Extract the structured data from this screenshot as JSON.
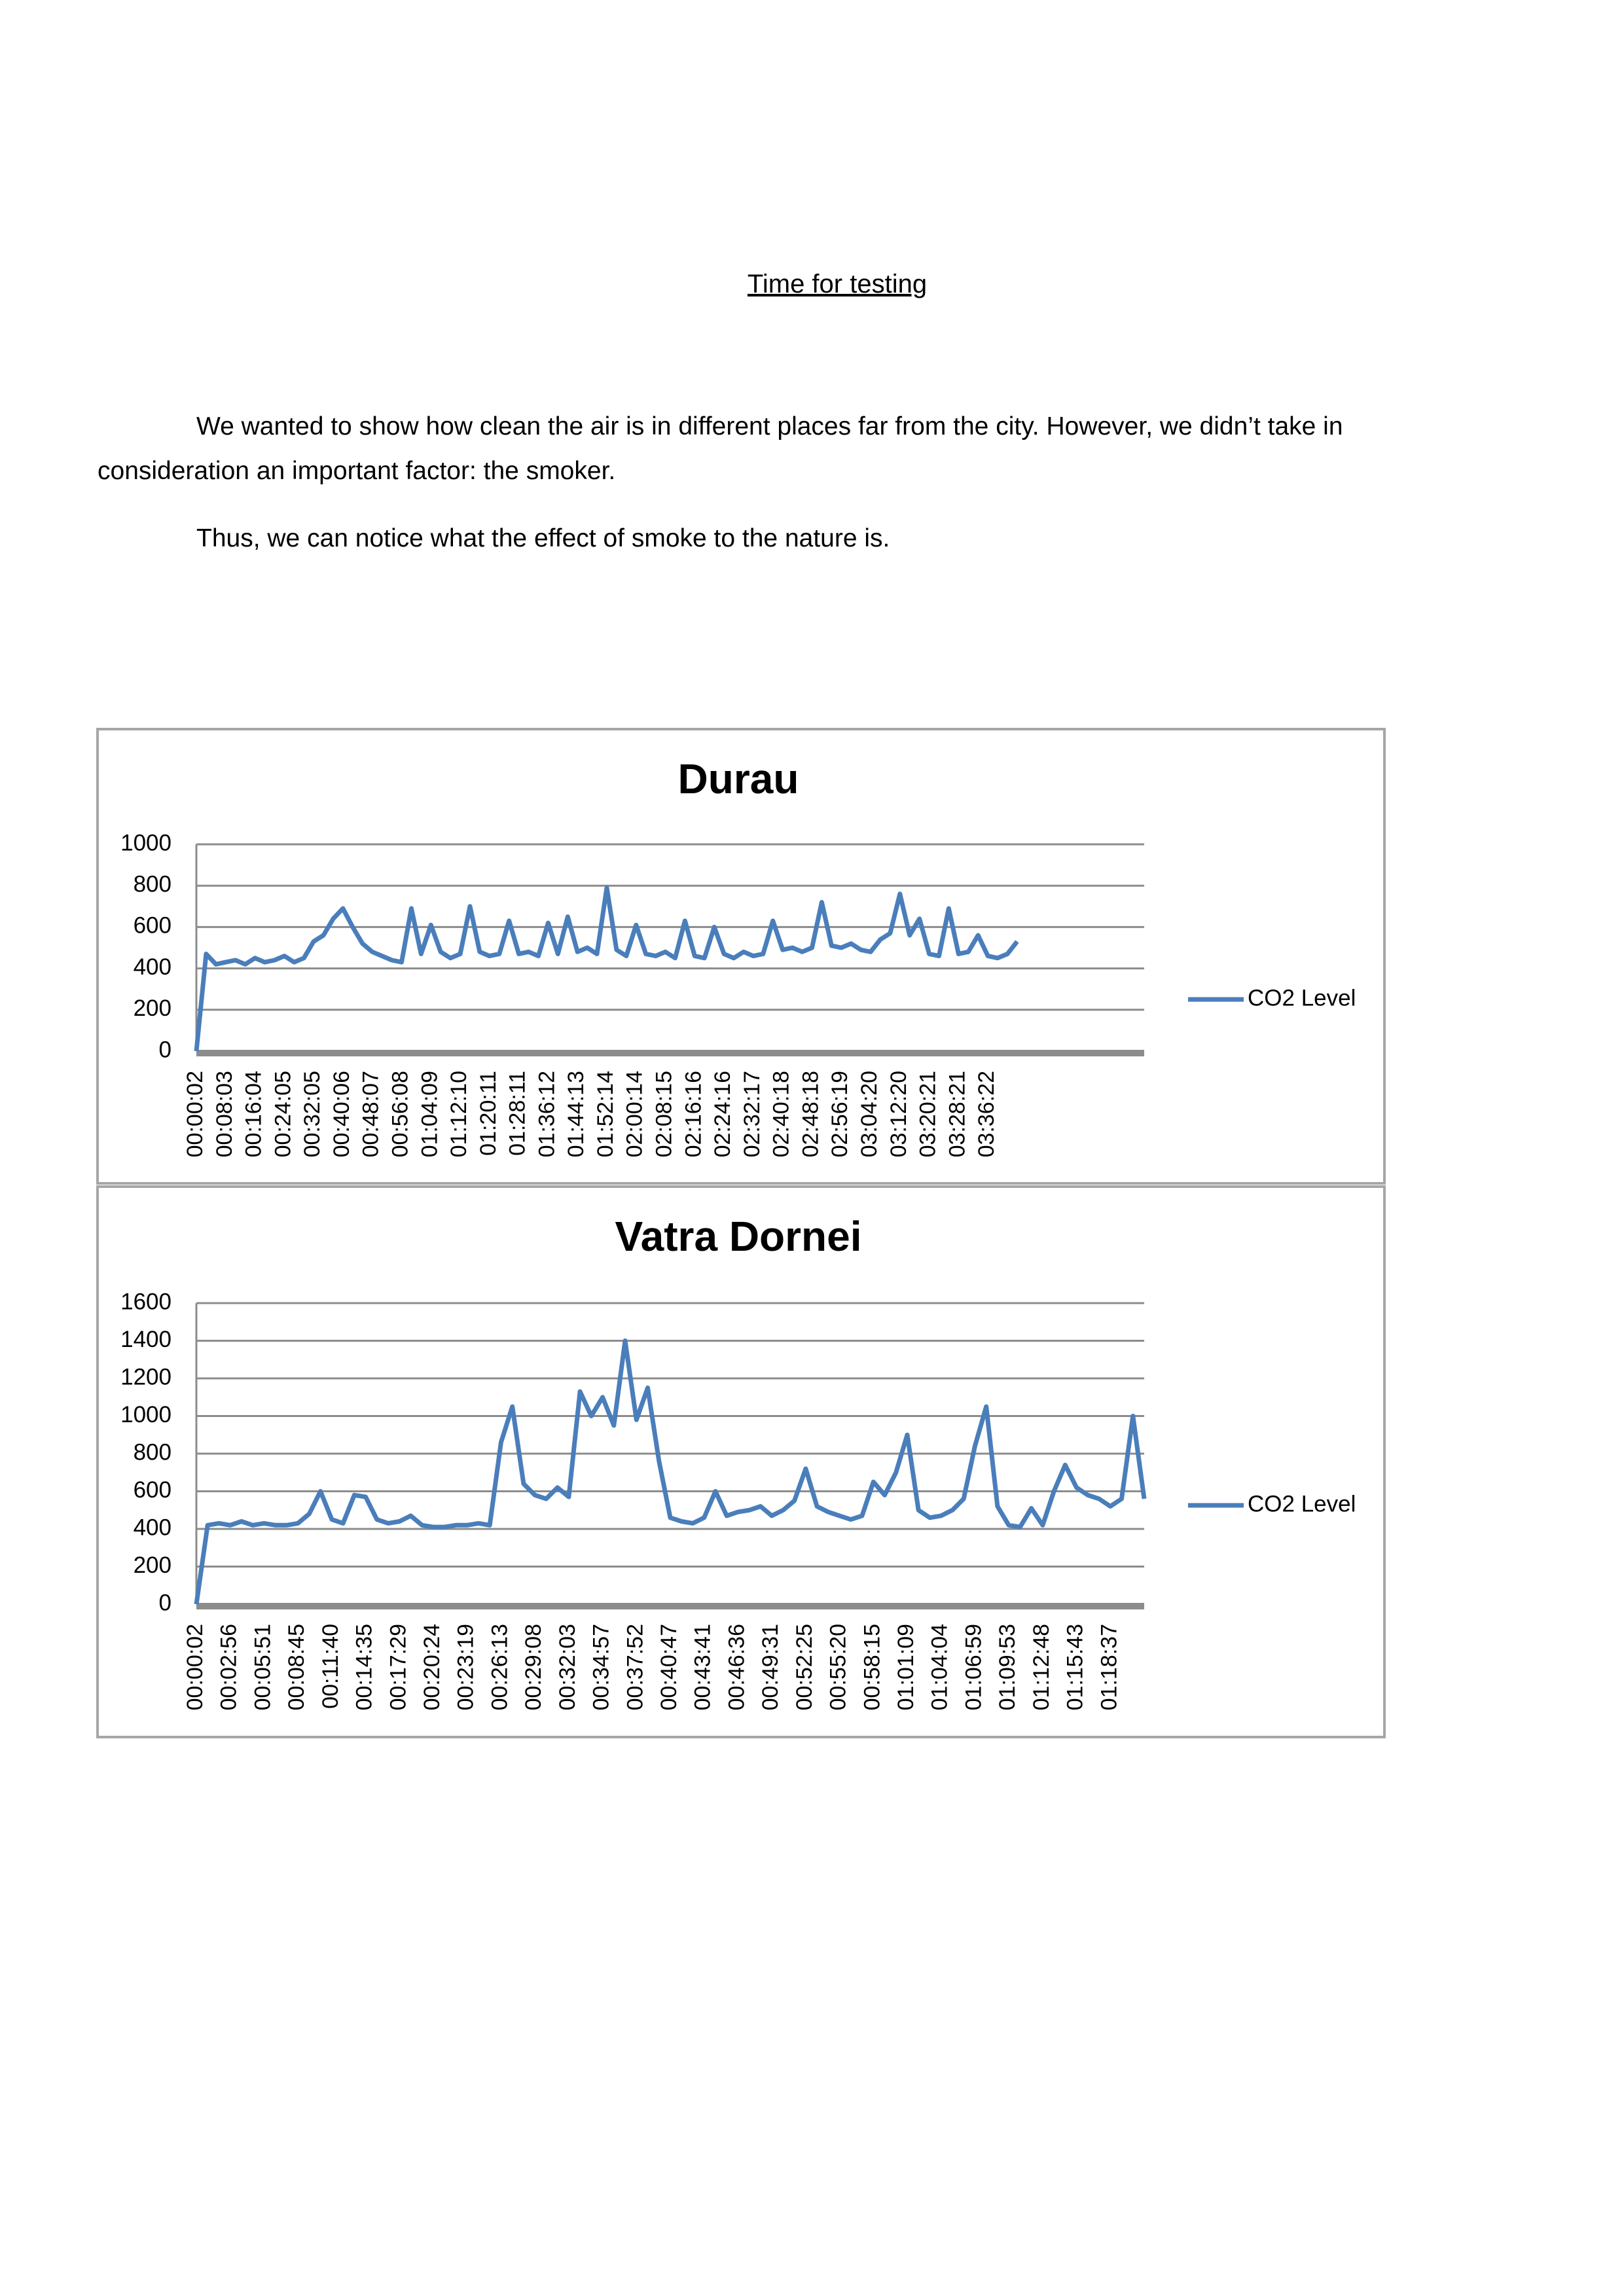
{
  "document": {
    "heading": "Time for testing",
    "paragraphs": [
      "We wanted to show how clean the air is in different places far from the city. However, we didn’t take in consideration an important factor: the smoker.",
      "Thus, we can notice what the effect of smoke to the nature is."
    ]
  },
  "chart_data": [
    {
      "type": "line",
      "title": "Durau",
      "categories": [
        "00:00:02",
        null,
        null,
        "00:08:03",
        null,
        null,
        "00:16:04",
        null,
        null,
        "00:24:05",
        null,
        null,
        "00:32:05",
        null,
        null,
        "00:40:06",
        null,
        null,
        "00:48:07",
        null,
        null,
        "00:56:08",
        null,
        null,
        "01:04:09",
        null,
        null,
        "01:12:10",
        null,
        null,
        "01:20:11",
        null,
        null,
        "01:28:11",
        null,
        null,
        "01:36:12",
        null,
        null,
        "01:44:13",
        null,
        null,
        "01:52:14",
        null,
        null,
        "02:00:14",
        null,
        null,
        "02:08:15",
        null,
        null,
        "02:16:16",
        null,
        null,
        "02:24:16",
        null,
        null,
        "02:32:17",
        null,
        null,
        "02:40:18",
        null,
        null,
        "02:48:18",
        null,
        null,
        "02:56:19",
        null,
        null,
        "03:04:20",
        null,
        null,
        "03:12:20",
        null,
        null,
        "03:20:21",
        null,
        null,
        "03:28:21",
        null,
        null,
        "03:36:22",
        null,
        null,
        null,
        null,
        null,
        null,
        null,
        null,
        null,
        null,
        null,
        null,
        null,
        null,
        null,
        null
      ],
      "series": [
        {
          "name": "CO2 Level",
          "color": "#4a7ebb",
          "values": [
            0,
            470,
            420,
            430,
            440,
            420,
            450,
            430,
            440,
            460,
            430,
            450,
            530,
            560,
            640,
            690,
            600,
            520,
            480,
            460,
            440,
            430,
            690,
            470,
            610,
            480,
            450,
            470,
            700,
            480,
            460,
            470,
            630,
            470,
            480,
            460,
            620,
            470,
            650,
            480,
            500,
            470,
            790,
            490,
            460,
            610,
            470,
            460,
            480,
            450,
            630,
            460,
            450,
            600,
            470,
            450,
            480,
            460,
            470,
            630,
            490,
            500,
            480,
            500,
            720,
            510,
            500,
            520,
            490,
            480,
            540,
            570,
            760,
            560,
            640,
            470,
            460,
            690,
            470,
            480,
            560,
            460,
            450,
            470,
            530,
            null,
            null,
            null,
            null,
            null,
            null,
            null,
            null,
            null,
            null,
            null,
            null,
            null
          ]
        }
      ],
      "ylim": [
        0,
        1000
      ],
      "yticks": [
        0,
        200,
        400,
        600,
        800,
        1000
      ],
      "grid": true,
      "legend": "right"
    },
    {
      "type": "line",
      "title": "Vatra Dornei",
      "categories": [
        "00:00:02",
        null,
        null,
        "00:02:56",
        null,
        null,
        "00:05:51",
        null,
        null,
        "00:08:45",
        null,
        null,
        "00:11:40",
        null,
        null,
        "00:14:35",
        null,
        null,
        "00:17:29",
        null,
        null,
        "00:20:24",
        null,
        null,
        "00:23:19",
        null,
        null,
        "00:26:13",
        null,
        null,
        "00:29:08",
        null,
        null,
        "00:32:03",
        null,
        null,
        "00:34:57",
        null,
        null,
        "00:37:52",
        null,
        null,
        "00:40:47",
        null,
        null,
        "00:43:41",
        null,
        null,
        "00:46:36",
        null,
        null,
        "00:49:31",
        null,
        null,
        "00:52:25",
        null,
        null,
        "00:55:20",
        null,
        null,
        "00:58:15",
        null,
        null,
        "01:01:09",
        null,
        null,
        "01:04:04",
        null,
        null,
        "01:06:59",
        null,
        null,
        "01:09:53",
        null,
        null,
        "01:12:48",
        null,
        null,
        "01:15:43",
        null,
        null,
        "01:18:37",
        null,
        null,
        null
      ],
      "series": [
        {
          "name": "CO2 Level",
          "color": "#4a7ebb",
          "values": [
            0,
            420,
            430,
            420,
            440,
            420,
            430,
            420,
            420,
            430,
            480,
            600,
            450,
            430,
            580,
            570,
            450,
            430,
            440,
            470,
            420,
            410,
            410,
            420,
            420,
            430,
            420,
            860,
            1050,
            640,
            580,
            560,
            620,
            570,
            1130,
            1000,
            1100,
            950,
            1400,
            980,
            1150,
            760,
            460,
            440,
            430,
            460,
            600,
            470,
            490,
            500,
            520,
            470,
            500,
            550,
            720,
            520,
            490,
            470,
            450,
            470,
            650,
            580,
            700,
            900,
            500,
            460,
            470,
            500,
            560,
            840,
            1050,
            520,
            420,
            410,
            510,
            420,
            600,
            740,
            620,
            580,
            560,
            520,
            560,
            1000,
            560
          ]
        }
      ],
      "ylim": [
        0,
        1600
      ],
      "yticks": [
        0,
        200,
        400,
        600,
        800,
        1000,
        1200,
        1400,
        1600
      ],
      "grid": true,
      "legend": "right"
    }
  ]
}
